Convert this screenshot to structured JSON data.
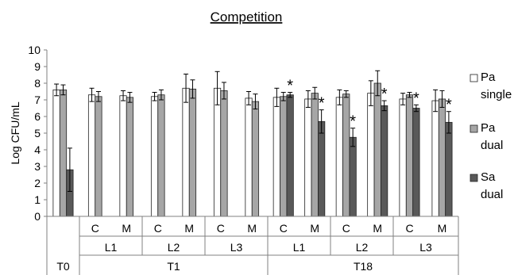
{
  "chart_data": {
    "type": "bar",
    "title": "Competition",
    "ylabel": "Log CFU/mL",
    "ylim": [
      0,
      10
    ],
    "yticks": [
      0,
      1,
      2,
      3,
      4,
      5,
      6,
      7,
      8,
      9,
      10
    ],
    "grid": false,
    "legend_position": "right",
    "colors": {
      "pa_single": "#ffffff",
      "pa_dual": "#a6a6a6",
      "sa_dual": "#595959",
      "edge": "#222222"
    },
    "series": [
      {
        "key": "pa_single",
        "name": "Pa single",
        "legend_lines": [
          "Pa",
          "single"
        ]
      },
      {
        "key": "pa_dual",
        "name": "Pa dual",
        "legend_lines": [
          "Pa",
          "dual"
        ]
      },
      {
        "key": "sa_dual",
        "name": "Sa dual",
        "legend_lines": [
          "Sa",
          "dual"
        ]
      }
    ],
    "groups": [
      {
        "time": "T0",
        "level": "",
        "cond": "",
        "pa_single": [
          7.6,
          0.35
        ],
        "pa_dual": [
          7.6,
          0.3
        ],
        "sa_dual": [
          2.8,
          1.3
        ],
        "sig": false
      },
      {
        "time": "T1",
        "level": "L1",
        "cond": "C",
        "pa_single": [
          7.3,
          0.4
        ],
        "pa_dual": [
          7.2,
          0.3
        ],
        "sa_dual": null,
        "sig": false
      },
      {
        "time": "T1",
        "level": "L1",
        "cond": "M",
        "pa_single": [
          7.25,
          0.3
        ],
        "pa_dual": [
          7.15,
          0.3
        ],
        "sa_dual": null,
        "sig": false
      },
      {
        "time": "T1",
        "level": "L2",
        "cond": "C",
        "pa_single": [
          7.2,
          0.25
        ],
        "pa_dual": [
          7.3,
          0.3
        ],
        "sa_dual": null,
        "sig": false
      },
      {
        "time": "T1",
        "level": "L2",
        "cond": "M",
        "pa_single": [
          7.7,
          0.85
        ],
        "pa_dual": [
          7.65,
          0.55
        ],
        "sa_dual": null,
        "sig": false
      },
      {
        "time": "T1",
        "level": "L3",
        "cond": "C",
        "pa_single": [
          7.7,
          1.0
        ],
        "pa_dual": [
          7.55,
          0.5
        ],
        "sa_dual": null,
        "sig": false
      },
      {
        "time": "T1",
        "level": "L3",
        "cond": "M",
        "pa_single": [
          7.1,
          0.4
        ],
        "pa_dual": [
          6.9,
          0.45
        ],
        "sa_dual": null,
        "sig": false
      },
      {
        "time": "T18",
        "level": "L1",
        "cond": "C",
        "pa_single": [
          7.15,
          0.55
        ],
        "pa_dual": [
          7.2,
          0.25
        ],
        "sa_dual": [
          7.3,
          0.15
        ],
        "sig": true
      },
      {
        "time": "T18",
        "level": "L1",
        "cond": "M",
        "pa_single": [
          7.05,
          0.5
        ],
        "pa_dual": [
          7.4,
          0.35
        ],
        "sa_dual": [
          5.7,
          0.7
        ],
        "sig": true
      },
      {
        "time": "T18",
        "level": "L2",
        "cond": "C",
        "pa_single": [
          7.15,
          0.45
        ],
        "pa_dual": [
          7.35,
          0.2
        ],
        "sa_dual": [
          4.75,
          0.55
        ],
        "sig": true
      },
      {
        "time": "T18",
        "level": "L2",
        "cond": "M",
        "pa_single": [
          7.4,
          0.75
        ],
        "pa_dual": [
          8.0,
          0.75
        ],
        "sa_dual": [
          6.65,
          0.3
        ],
        "sig": true
      },
      {
        "time": "T18",
        "level": "L3",
        "cond": "C",
        "pa_single": [
          7.05,
          0.35
        ],
        "pa_dual": [
          7.3,
          0.15
        ],
        "sa_dual": [
          6.5,
          0.2
        ],
        "sig": true
      },
      {
        "time": "T18",
        "level": "L3",
        "cond": "M",
        "pa_single": [
          6.95,
          0.65
        ],
        "pa_dual": [
          7.05,
          0.5
        ],
        "sa_dual": [
          5.65,
          0.65
        ],
        "sig": true
      }
    ],
    "sig_marker": "*",
    "time_labels": [
      "T0",
      "T1",
      "T18"
    ],
    "level_labels": [
      "L1",
      "L2",
      "L3"
    ],
    "cond_labels": [
      "C",
      "M"
    ]
  }
}
